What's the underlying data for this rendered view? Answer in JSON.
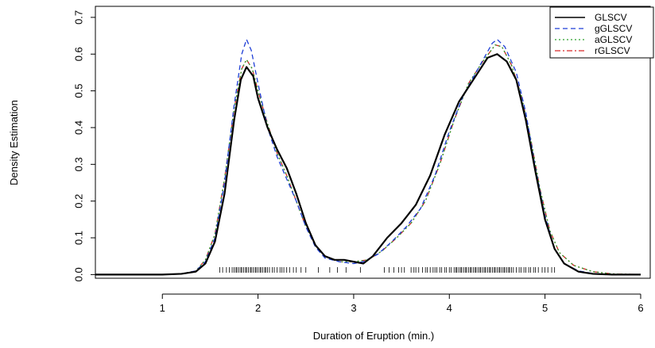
{
  "chart_data": {
    "type": "line",
    "title": "",
    "xlabel": "Duration of Eruption (min.)",
    "ylabel": "Density Estimation",
    "xlim": [
      0.3,
      6.1
    ],
    "ylim": [
      -0.01,
      0.73
    ],
    "x_ticks": [
      1,
      2,
      3,
      4,
      5,
      6
    ],
    "x_tick_labels": [
      "1",
      "2",
      "3",
      "4",
      "5",
      "6"
    ],
    "y_ticks": [
      0.0,
      0.1,
      0.2,
      0.3,
      0.4,
      0.5,
      0.6,
      0.7
    ],
    "y_tick_labels": [
      "0.0",
      "0.1",
      "0.2",
      "0.3",
      "0.4",
      "0.5",
      "0.6",
      "0.7"
    ],
    "grid": false,
    "legend_position": "top-right",
    "series": [
      {
        "name": "GLSCV",
        "color": "#000000",
        "dash": "solid",
        "points": [
          [
            0.3,
            0
          ],
          [
            1.0,
            0
          ],
          [
            1.2,
            0.002
          ],
          [
            1.35,
            0.008
          ],
          [
            1.45,
            0.03
          ],
          [
            1.55,
            0.09
          ],
          [
            1.65,
            0.22
          ],
          [
            1.75,
            0.42
          ],
          [
            1.82,
            0.53
          ],
          [
            1.88,
            0.565
          ],
          [
            1.95,
            0.54
          ],
          [
            2.0,
            0.48
          ],
          [
            2.1,
            0.4
          ],
          [
            2.2,
            0.34
          ],
          [
            2.3,
            0.29
          ],
          [
            2.4,
            0.22
          ],
          [
            2.5,
            0.14
          ],
          [
            2.6,
            0.08
          ],
          [
            2.7,
            0.05
          ],
          [
            2.8,
            0.04
          ],
          [
            2.9,
            0.04
          ],
          [
            3.0,
            0.035
          ],
          [
            3.1,
            0.03
          ],
          [
            3.2,
            0.05
          ],
          [
            3.35,
            0.1
          ],
          [
            3.5,
            0.14
          ],
          [
            3.65,
            0.19
          ],
          [
            3.8,
            0.27
          ],
          [
            3.95,
            0.38
          ],
          [
            4.1,
            0.47
          ],
          [
            4.25,
            0.53
          ],
          [
            4.4,
            0.59
          ],
          [
            4.5,
            0.6
          ],
          [
            4.6,
            0.58
          ],
          [
            4.7,
            0.53
          ],
          [
            4.8,
            0.42
          ],
          [
            4.9,
            0.28
          ],
          [
            5.0,
            0.15
          ],
          [
            5.1,
            0.07
          ],
          [
            5.2,
            0.03
          ],
          [
            5.35,
            0.008
          ],
          [
            5.5,
            0.002
          ],
          [
            5.7,
            0
          ],
          [
            6.0,
            0
          ]
        ]
      },
      {
        "name": "gGLSCV",
        "color": "#1f3fd6",
        "dash": "dashed",
        "points": [
          [
            0.3,
            0
          ],
          [
            1.0,
            0
          ],
          [
            1.2,
            0.002
          ],
          [
            1.35,
            0.01
          ],
          [
            1.45,
            0.035
          ],
          [
            1.55,
            0.1
          ],
          [
            1.65,
            0.25
          ],
          [
            1.75,
            0.46
          ],
          [
            1.83,
            0.6
          ],
          [
            1.88,
            0.64
          ],
          [
            1.93,
            0.61
          ],
          [
            2.0,
            0.52
          ],
          [
            2.1,
            0.4
          ],
          [
            2.2,
            0.32
          ],
          [
            2.3,
            0.26
          ],
          [
            2.4,
            0.2
          ],
          [
            2.5,
            0.13
          ],
          [
            2.6,
            0.075
          ],
          [
            2.7,
            0.045
          ],
          [
            2.85,
            0.035
          ],
          [
            3.0,
            0.03
          ],
          [
            3.1,
            0.035
          ],
          [
            3.25,
            0.055
          ],
          [
            3.4,
            0.09
          ],
          [
            3.55,
            0.13
          ],
          [
            3.7,
            0.18
          ],
          [
            3.85,
            0.27
          ],
          [
            4.0,
            0.39
          ],
          [
            4.15,
            0.49
          ],
          [
            4.3,
            0.56
          ],
          [
            4.45,
            0.63
          ],
          [
            4.5,
            0.64
          ],
          [
            4.58,
            0.62
          ],
          [
            4.7,
            0.55
          ],
          [
            4.8,
            0.44
          ],
          [
            4.9,
            0.29
          ],
          [
            5.0,
            0.16
          ],
          [
            5.1,
            0.07
          ],
          [
            5.2,
            0.03
          ],
          [
            5.35,
            0.01
          ],
          [
            5.5,
            0.003
          ],
          [
            5.7,
            0
          ],
          [
            6.0,
            0
          ]
        ]
      },
      {
        "name": "aGLSCV",
        "color": "#2ca02c",
        "dash": "dotted",
        "points": [
          [
            0.3,
            0
          ],
          [
            1.0,
            0
          ],
          [
            1.2,
            0.002
          ],
          [
            1.35,
            0.01
          ],
          [
            1.45,
            0.04
          ],
          [
            1.55,
            0.11
          ],
          [
            1.65,
            0.26
          ],
          [
            1.75,
            0.45
          ],
          [
            1.83,
            0.56
          ],
          [
            1.88,
            0.585
          ],
          [
            1.94,
            0.56
          ],
          [
            2.0,
            0.5
          ],
          [
            2.1,
            0.41
          ],
          [
            2.2,
            0.33
          ],
          [
            2.3,
            0.27
          ],
          [
            2.4,
            0.2
          ],
          [
            2.5,
            0.13
          ],
          [
            2.6,
            0.08
          ],
          [
            2.7,
            0.05
          ],
          [
            2.85,
            0.035
          ],
          [
            3.0,
            0.035
          ],
          [
            3.15,
            0.04
          ],
          [
            3.3,
            0.065
          ],
          [
            3.45,
            0.1
          ],
          [
            3.6,
            0.14
          ],
          [
            3.75,
            0.2
          ],
          [
            3.9,
            0.3
          ],
          [
            4.05,
            0.42
          ],
          [
            4.2,
            0.52
          ],
          [
            4.35,
            0.58
          ],
          [
            4.48,
            0.625
          ],
          [
            4.55,
            0.62
          ],
          [
            4.65,
            0.57
          ],
          [
            4.75,
            0.49
          ],
          [
            4.85,
            0.37
          ],
          [
            4.95,
            0.23
          ],
          [
            5.05,
            0.12
          ],
          [
            5.15,
            0.06
          ],
          [
            5.3,
            0.025
          ],
          [
            5.5,
            0.008
          ],
          [
            5.7,
            0.002
          ],
          [
            6.0,
            0
          ]
        ]
      },
      {
        "name": "rGLSCV",
        "color": "#d62728",
        "dash": "dashdot",
        "points": [
          [
            0.3,
            0
          ],
          [
            1.0,
            0
          ],
          [
            1.2,
            0.002
          ],
          [
            1.35,
            0.01
          ],
          [
            1.45,
            0.04
          ],
          [
            1.55,
            0.11
          ],
          [
            1.65,
            0.26
          ],
          [
            1.75,
            0.45
          ],
          [
            1.83,
            0.56
          ],
          [
            1.88,
            0.585
          ],
          [
            1.94,
            0.56
          ],
          [
            2.0,
            0.5
          ],
          [
            2.1,
            0.41
          ],
          [
            2.2,
            0.33
          ],
          [
            2.3,
            0.27
          ],
          [
            2.4,
            0.2
          ],
          [
            2.5,
            0.13
          ],
          [
            2.6,
            0.08
          ],
          [
            2.7,
            0.05
          ],
          [
            2.85,
            0.035
          ],
          [
            3.0,
            0.035
          ],
          [
            3.15,
            0.04
          ],
          [
            3.3,
            0.065
          ],
          [
            3.45,
            0.1
          ],
          [
            3.6,
            0.14
          ],
          [
            3.75,
            0.2
          ],
          [
            3.9,
            0.3
          ],
          [
            4.05,
            0.42
          ],
          [
            4.2,
            0.52
          ],
          [
            4.35,
            0.58
          ],
          [
            4.48,
            0.625
          ],
          [
            4.55,
            0.62
          ],
          [
            4.65,
            0.57
          ],
          [
            4.75,
            0.49
          ],
          [
            4.85,
            0.37
          ],
          [
            4.95,
            0.23
          ],
          [
            5.05,
            0.12
          ],
          [
            5.15,
            0.06
          ],
          [
            5.3,
            0.025
          ],
          [
            5.5,
            0.008
          ],
          [
            5.7,
            0.002
          ],
          [
            6.0,
            0
          ]
        ]
      }
    ],
    "rug": [
      1.6,
      1.63,
      1.67,
      1.7,
      1.73,
      1.75,
      1.77,
      1.78,
      1.8,
      1.82,
      1.83,
      1.85,
      1.87,
      1.88,
      1.9,
      1.92,
      1.93,
      1.95,
      1.97,
      1.98,
      2.0,
      2.02,
      2.03,
      2.05,
      2.07,
      2.08,
      2.1,
      2.12,
      2.15,
      2.17,
      2.2,
      2.23,
      2.25,
      2.27,
      2.3,
      2.33,
      2.37,
      2.4,
      2.45,
      2.5,
      2.63,
      2.75,
      2.83,
      2.92,
      3.07,
      3.32,
      3.37,
      3.42,
      3.47,
      3.5,
      3.53,
      3.6,
      3.63,
      3.65,
      3.68,
      3.72,
      3.75,
      3.77,
      3.8,
      3.83,
      3.85,
      3.87,
      3.9,
      3.92,
      3.95,
      3.97,
      4.0,
      4.02,
      4.05,
      4.07,
      4.08,
      4.1,
      4.12,
      4.13,
      4.15,
      4.17,
      4.18,
      4.2,
      4.22,
      4.23,
      4.25,
      4.27,
      4.28,
      4.3,
      4.32,
      4.33,
      4.35,
      4.37,
      4.38,
      4.4,
      4.42,
      4.43,
      4.45,
      4.47,
      4.48,
      4.5,
      4.52,
      4.53,
      4.55,
      4.57,
      4.58,
      4.6,
      4.62,
      4.63,
      4.65,
      4.67,
      4.7,
      4.73,
      4.75,
      4.78,
      4.8,
      4.83,
      4.85,
      4.88,
      4.9,
      4.93,
      4.97,
      5.0,
      5.03,
      5.07,
      5.1
    ]
  }
}
